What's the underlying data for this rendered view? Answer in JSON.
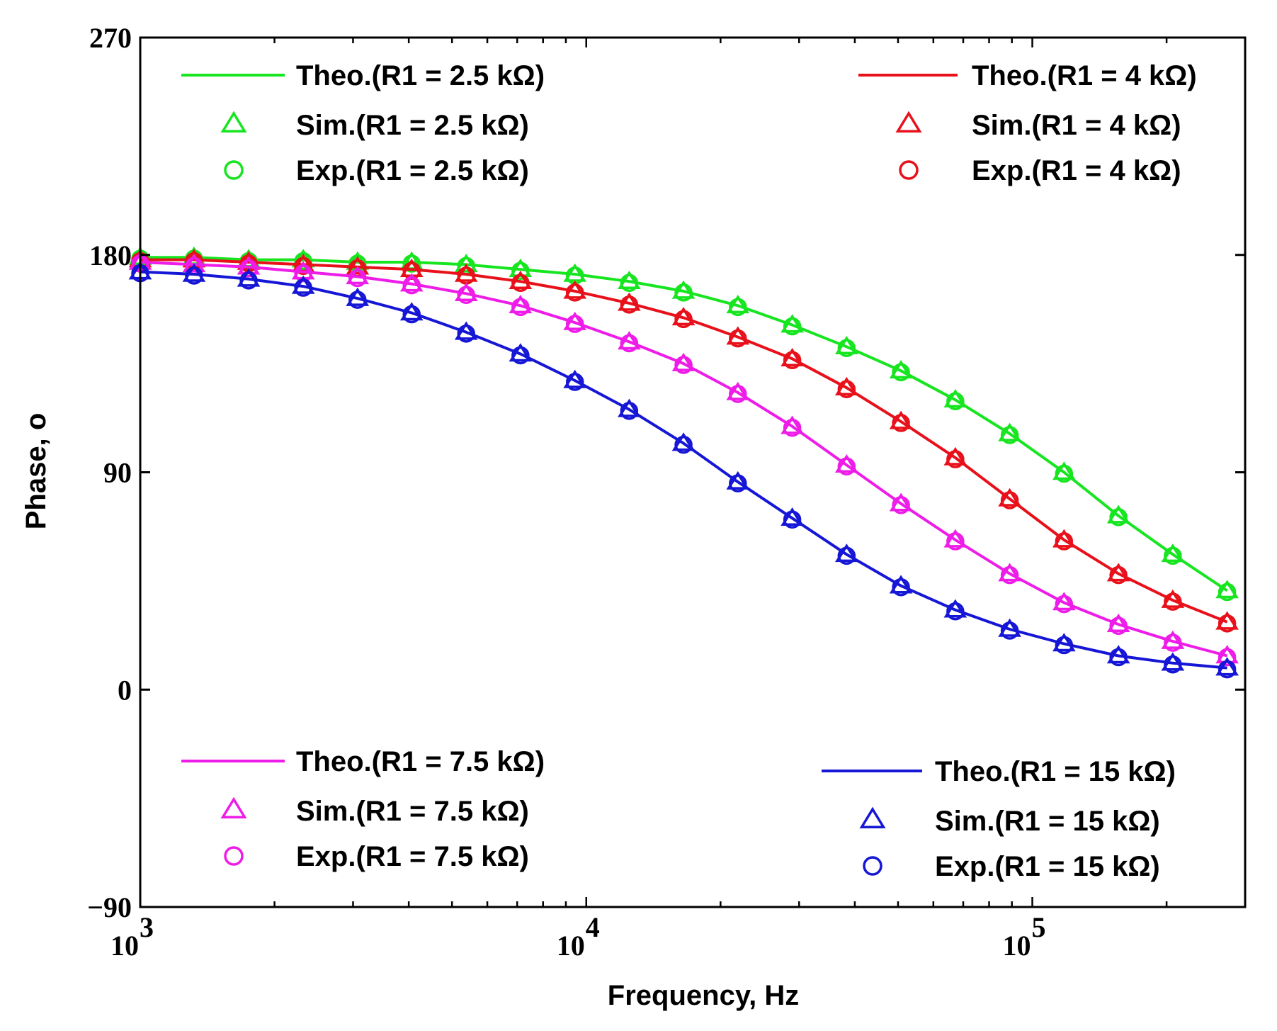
{
  "chart_data": {
    "type": "line",
    "xscale": "log",
    "xlim": [
      1000,
      300000
    ],
    "ylim": [
      -90,
      270
    ],
    "xlabel": "Frequency, Hz",
    "ylabel": "Phase, o",
    "y_ticks": [
      "270",
      "180",
      "90",
      "0",
      "−90"
    ],
    "y_tick_values": [
      270,
      180,
      90,
      0,
      -90
    ],
    "x_ticks": [
      {
        "base": "10",
        "exp": "3",
        "value": 1000
      },
      {
        "base": "10",
        "exp": "4",
        "value": 10000
      },
      {
        "base": "10",
        "exp": "5",
        "value": 100000
      }
    ],
    "x": [
      1000,
      1320,
      1750,
      2320,
      3070,
      4060,
      5380,
      7120,
      9430,
      12480,
      16520,
      21870,
      28960,
      38340,
      50760,
      67210,
      88980,
      117800,
      156000,
      206500,
      273400
    ],
    "series": [
      {
        "key": "r25",
        "color": "#16e51f",
        "theo_label": "Theo.(R1 = 2.5 kΩ)",
        "sim_label": "Sim.(R1 = 2.5 kΩ)",
        "exp_label": "Exp.(R1 = 2.5 kΩ)",
        "values": [
          179,
          179,
          178,
          178,
          177,
          177,
          176,
          174,
          172,
          169,
          165,
          159,
          151,
          142,
          132,
          120,
          106,
          90,
          72,
          56,
          41
        ]
      },
      {
        "key": "r4",
        "color": "#e8101a",
        "theo_label": "Theo.(R1 = 4 kΩ)",
        "sim_label": "Sim.(R1 = 4 kΩ)",
        "exp_label": "Exp.(R1 = 4 kΩ)",
        "values": [
          178,
          178,
          177,
          176,
          175,
          174,
          172,
          169,
          165,
          160,
          154,
          146,
          137,
          125,
          111,
          96,
          79,
          62,
          48,
          37,
          28
        ]
      },
      {
        "key": "r75",
        "color": "#ee1ce8",
        "theo_label": "Theo.(R1 = 7.5 kΩ)",
        "sim_label": "Sim.(R1 = 7.5 kΩ)",
        "exp_label": "Exp.(R1 = 7.5 kΩ)",
        "values": [
          177,
          176,
          175,
          173,
          171,
          168,
          164,
          159,
          152,
          144,
          135,
          123,
          109,
          93,
          77,
          62,
          48,
          36,
          27,
          20,
          14
        ]
      },
      {
        "key": "r15",
        "color": "#1616d6",
        "theo_label": "Theo.(R1 = 15 kΩ)",
        "sim_label": "Sim.(R1 = 15 kΩ)",
        "exp_label": "Exp.(R1 = 15 kΩ)",
        "values": [
          173,
          172,
          170,
          167,
          162,
          156,
          148,
          139,
          128,
          116,
          102,
          86,
          71,
          56,
          43,
          33,
          25,
          19,
          14,
          11,
          9
        ]
      }
    ]
  }
}
